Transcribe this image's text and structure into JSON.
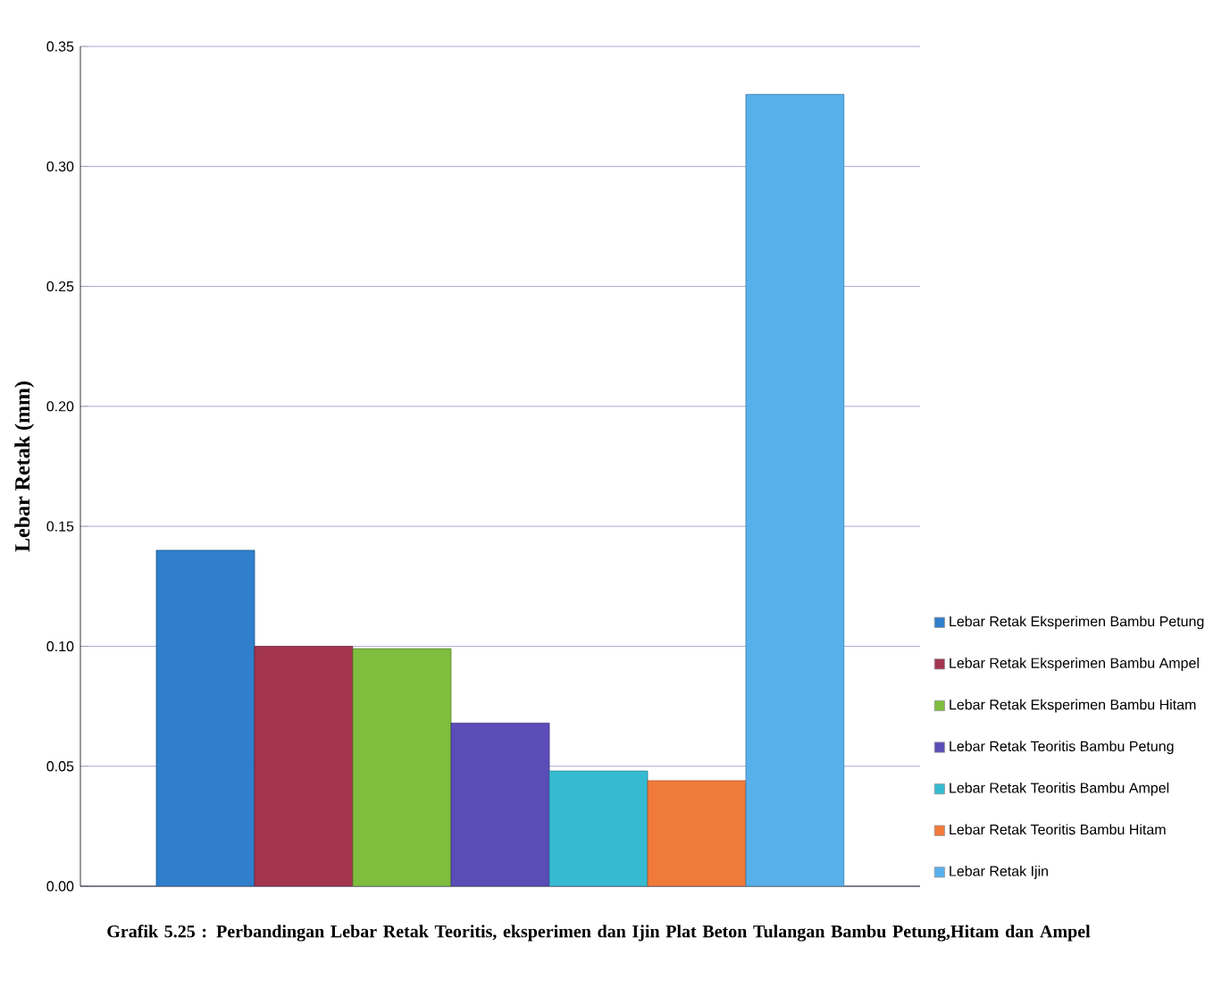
{
  "chart_data": {
    "type": "bar",
    "title": "Grafik 5.25 : Perbandingan Lebar Retak Teoritis, eksperimen dan Ijin Plat Beton Tulangan Bambu Petung,Hitam dan Ampel",
    "ylabel": "Lebar Retak (mm)",
    "categories": [
      null
    ],
    "series": [
      {
        "name": "Lebar Retak Eksperimen Bambu Petung",
        "color": "#2f7fcc",
        "values": [
          0.14
        ]
      },
      {
        "name": "Lebar Retak Eksperimen Bambu Ampel",
        "color": "#a3354f",
        "values": [
          0.1
        ]
      },
      {
        "name": "Lebar Retak Eksperimen Bambu Hitam",
        "color": "#7fbd3e",
        "values": [
          0.099
        ]
      },
      {
        "name": "Lebar Retak Teoritis Bambu Petung",
        "color": "#5b4cb8",
        "values": [
          0.068
        ]
      },
      {
        "name": "Lebar Retak Teoritis Bambu Ampel",
        "color": "#36bad2",
        "values": [
          0.048
        ]
      },
      {
        "name": "Lebar Retak Teoritis Bambu Hitam",
        "color": "#f07a3a",
        "values": [
          0.044
        ]
      },
      {
        "name": "Lebar Retak Ijin",
        "color": "#58b0ea",
        "values": [
          0.33
        ]
      }
    ],
    "ylim": [
      0,
      0.35
    ],
    "yticks": [
      {
        "value": 0,
        "label": "0.00"
      },
      {
        "value": 0.05,
        "label": "0.05"
      },
      {
        "value": 0.1,
        "label": "0.10"
      },
      {
        "value": 0.15,
        "label": "0.15"
      },
      {
        "value": 0.2,
        "label": "0.20"
      },
      {
        "value": 0.25,
        "label": "0.25"
      },
      {
        "value": 0.3,
        "label": "0.30"
      },
      {
        "value": 0.35,
        "label": "0.35"
      }
    ],
    "grid": "y",
    "legend": "right"
  }
}
